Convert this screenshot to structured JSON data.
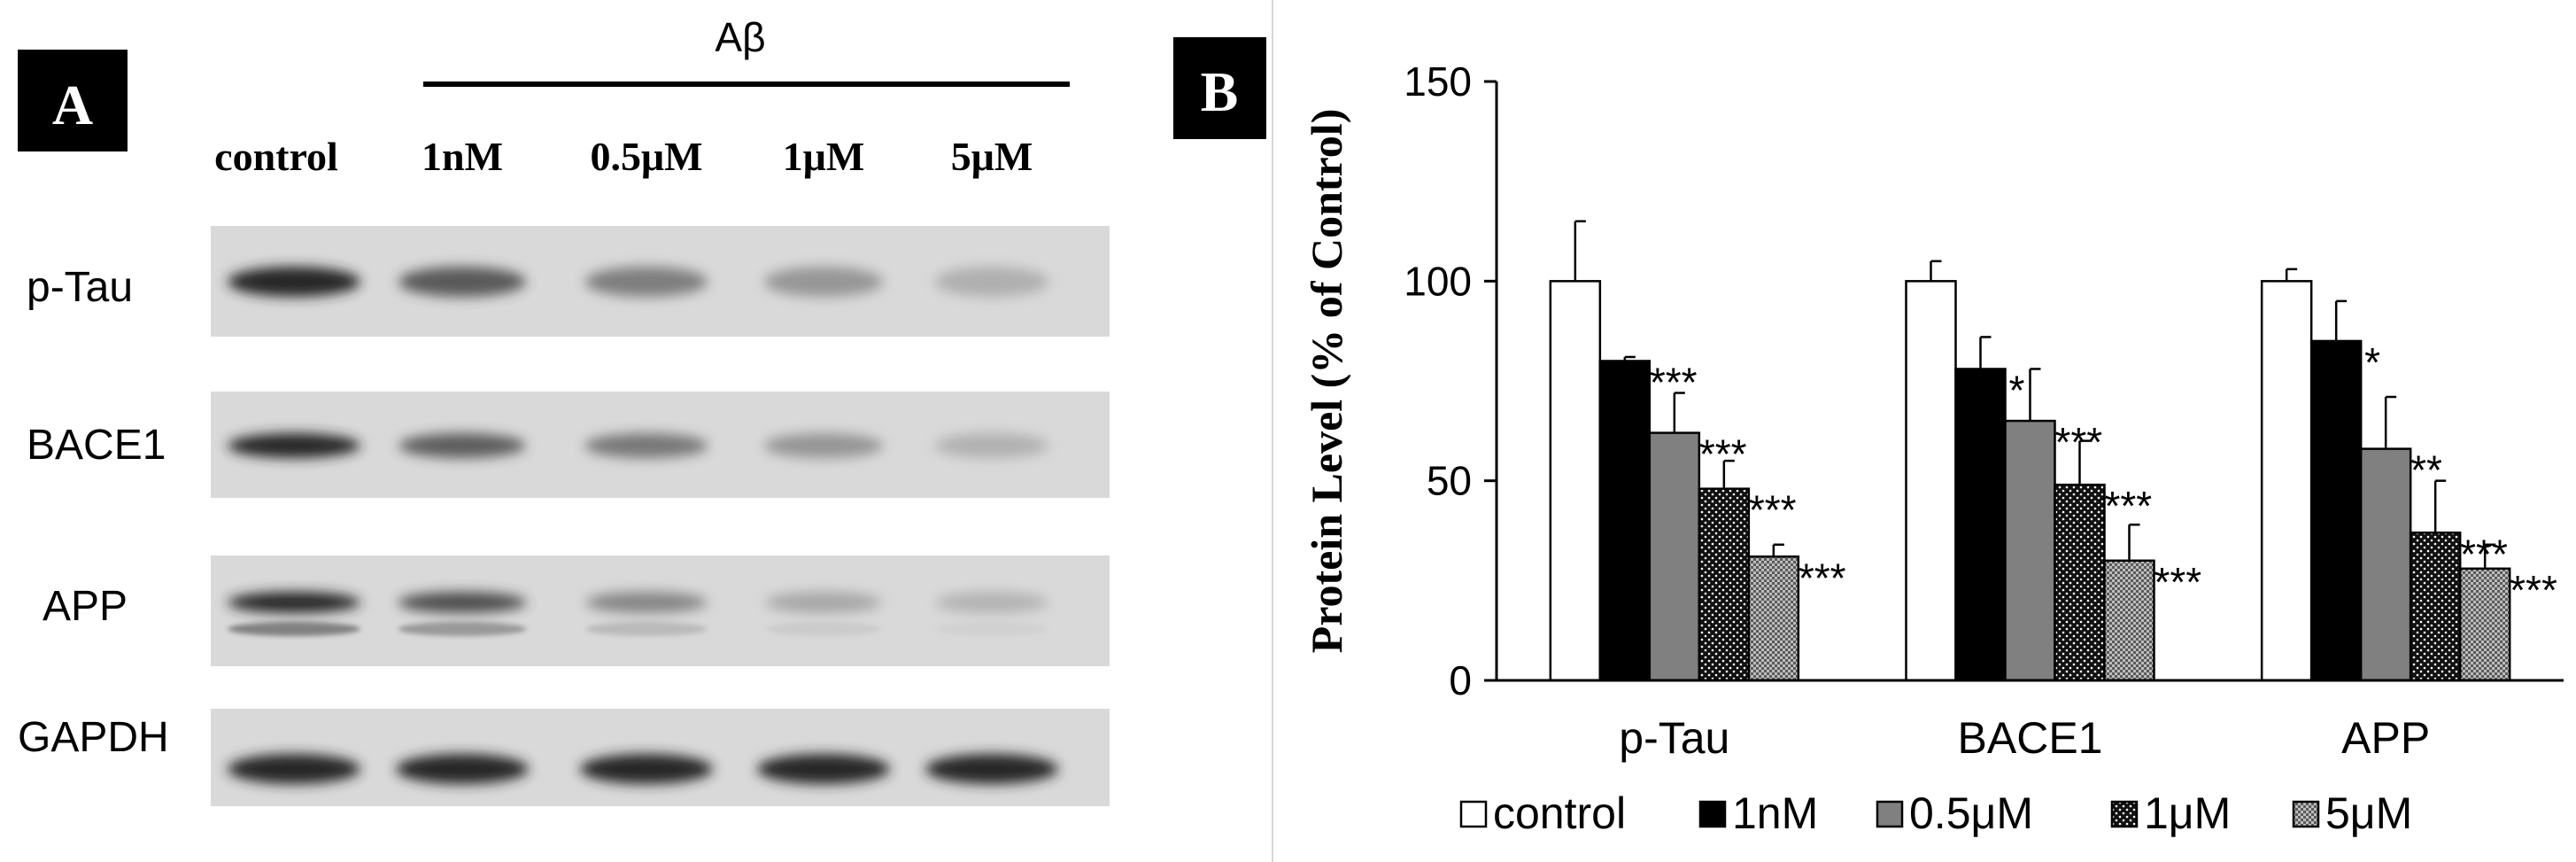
{
  "panel_a": {
    "label": "A",
    "treatment": "Aβ",
    "lanes": [
      "control",
      "1nM",
      "0.5μM",
      "1μM",
      "5μM"
    ],
    "rows": [
      "p-Tau",
      "BACE1",
      "APP",
      "GAPDH"
    ],
    "intensities": {
      "p-Tau": [
        1.0,
        0.8,
        0.62,
        0.48,
        0.31
      ],
      "BACE1": [
        1.0,
        0.78,
        0.65,
        0.49,
        0.3
      ],
      "APP": [
        1.0,
        0.85,
        0.58,
        0.37,
        0.28
      ],
      "GAPDH": [
        1.0,
        1.0,
        1.0,
        1.0,
        1.0
      ]
    }
  },
  "panel_b": {
    "label": "B"
  },
  "colors": {
    "control": "#ffffff",
    "1nM": "#000000",
    "0.5μM": "#808080",
    "1μM": "#2a2a2a",
    "5μM": "#a8a8a8"
  },
  "chart_data": {
    "type": "bar",
    "categories": [
      "p-Tau",
      "BACE1",
      "APP"
    ],
    "ylabel": "Protein Level (% of Control)",
    "ylim": [
      0,
      150
    ],
    "yticks": [
      0,
      50,
      100,
      150
    ],
    "legend_position": "bottom",
    "series": [
      {
        "name": "control",
        "values": [
          100,
          100,
          100
        ],
        "errors": [
          15,
          5,
          3
        ],
        "stars": [
          "",
          "",
          ""
        ]
      },
      {
        "name": "1nM",
        "values": [
          80,
          78,
          85
        ],
        "errors": [
          1,
          8,
          10
        ],
        "stars": [
          "***",
          "*",
          "*"
        ]
      },
      {
        "name": "0.5μM",
        "values": [
          62,
          65,
          58
        ],
        "errors": [
          10,
          13,
          13
        ],
        "stars": [
          "***",
          "***",
          "**"
        ]
      },
      {
        "name": "1μM",
        "values": [
          48,
          49,
          37
        ],
        "errors": [
          7,
          11,
          13
        ],
        "stars": [
          "***",
          "***",
          "***"
        ]
      },
      {
        "name": "5μM",
        "values": [
          31,
          30,
          28
        ],
        "errors": [
          3,
          9,
          6
        ],
        "stars": [
          "***",
          "***",
          "***"
        ]
      }
    ]
  }
}
